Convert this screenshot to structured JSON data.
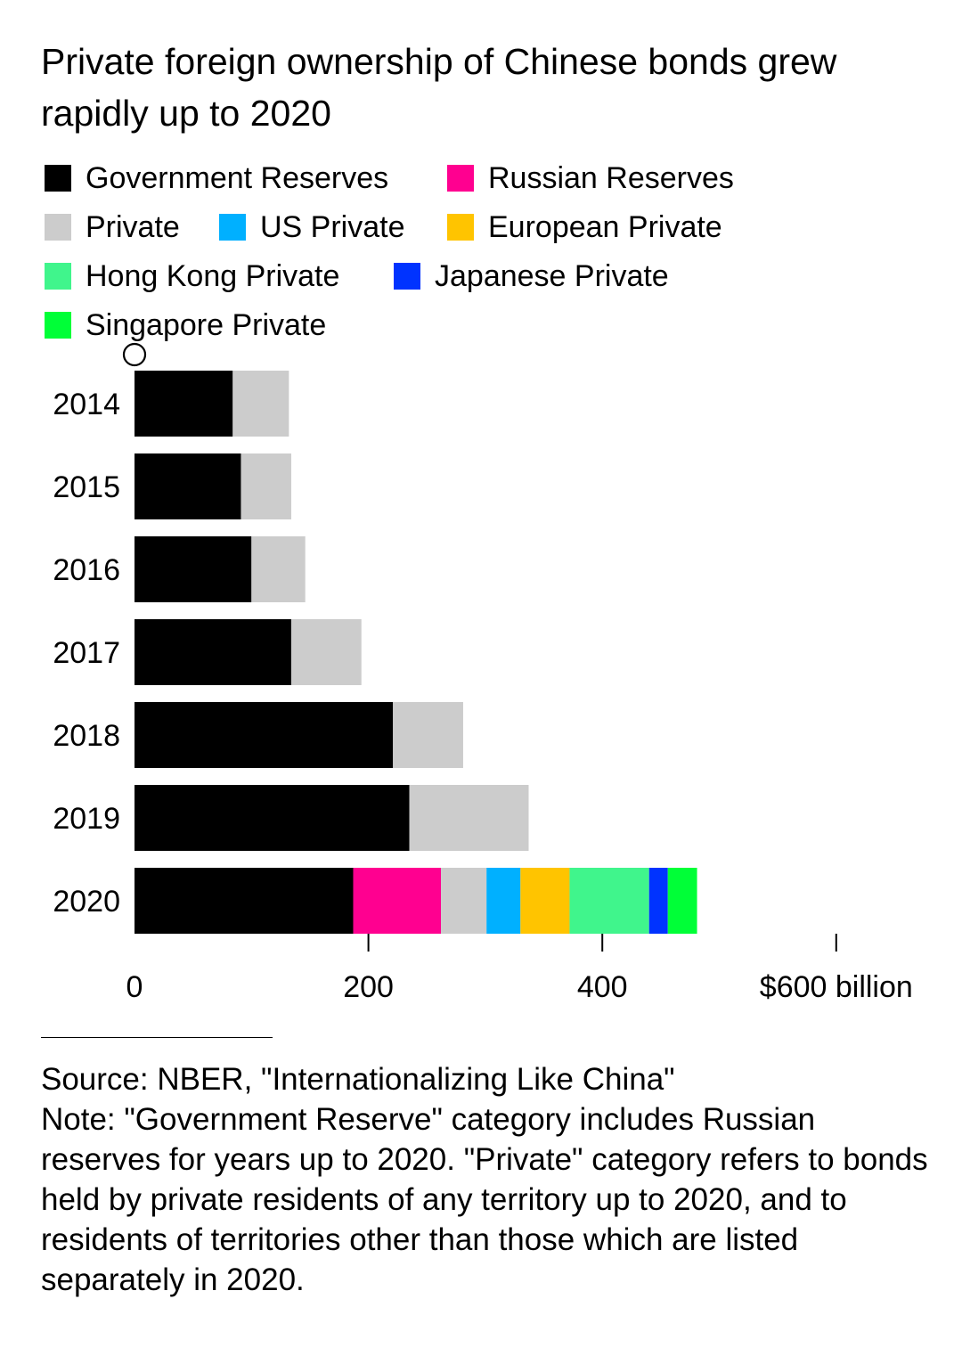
{
  "chart_data": {
    "type": "bar",
    "orientation": "horizontal",
    "stacked": true,
    "title": "Private foreign ownership of Chinese bonds grew rapidly up to 2020",
    "categories": [
      "2014",
      "2015",
      "2016",
      "2017",
      "2018",
      "2019",
      "2020"
    ],
    "series": [
      {
        "name": "Government Reserves",
        "color": "#000000",
        "values": [
          84,
          91,
          100,
          134,
          221,
          235,
          187
        ]
      },
      {
        "name": "Russian Reserves",
        "color": "#ff0090",
        "values": [
          0,
          0,
          0,
          0,
          0,
          0,
          75
        ]
      },
      {
        "name": "Private",
        "color": "#cccccc",
        "values": [
          48,
          43,
          46,
          60,
          60,
          102,
          39
        ]
      },
      {
        "name": "US Private",
        "color": "#00b0ff",
        "values": [
          0,
          0,
          0,
          0,
          0,
          0,
          29
        ]
      },
      {
        "name": "European Private",
        "color": "#ffc400",
        "values": [
          0,
          0,
          0,
          0,
          0,
          0,
          42
        ]
      },
      {
        "name": "Hong Kong Private",
        "color": "#40f58c",
        "values": [
          0,
          0,
          0,
          0,
          0,
          0,
          68
        ]
      },
      {
        "name": "Japanese Private",
        "color": "#0033ff",
        "values": [
          0,
          0,
          0,
          0,
          0,
          0,
          16
        ]
      },
      {
        "name": "Singapore Private",
        "color": "#00ff37",
        "values": [
          0,
          0,
          0,
          0,
          0,
          0,
          25
        ]
      }
    ],
    "xlim": [
      0,
      600
    ],
    "xticks": [
      0,
      200,
      400,
      600
    ],
    "xtick_labels": [
      "0",
      "200",
      "400",
      "$600 billion"
    ],
    "xlabel": "",
    "ylabel": "",
    "grid": false,
    "legend_position": "top-left"
  },
  "legend_rows": [
    [
      {
        "label": "Government Reserves",
        "color": "#000000"
      },
      {
        "label": "Russian Reserves",
        "color": "#ff0090"
      }
    ],
    [
      {
        "label": "Private",
        "color": "#cccccc"
      },
      {
        "label": "US Private",
        "color": "#00b0ff"
      },
      {
        "label": "European Private",
        "color": "#ffc400"
      }
    ],
    [
      {
        "label": "Hong Kong Private",
        "color": "#40f58c"
      },
      {
        "label": "Japanese Private",
        "color": "#0033ff"
      }
    ],
    [
      {
        "label": "Singapore Private",
        "color": "#00ff37"
      }
    ]
  ],
  "footer": {
    "source": "Source: NBER, \"Internationalizing Like China\"",
    "note": "Note: \"Government Reserve\" category includes Russian reserves for years up to 2020. \"Private\" category refers to bonds held by private residents of any territory up to 2020, and to residents of territories other than those which are listed separately in 2020."
  }
}
